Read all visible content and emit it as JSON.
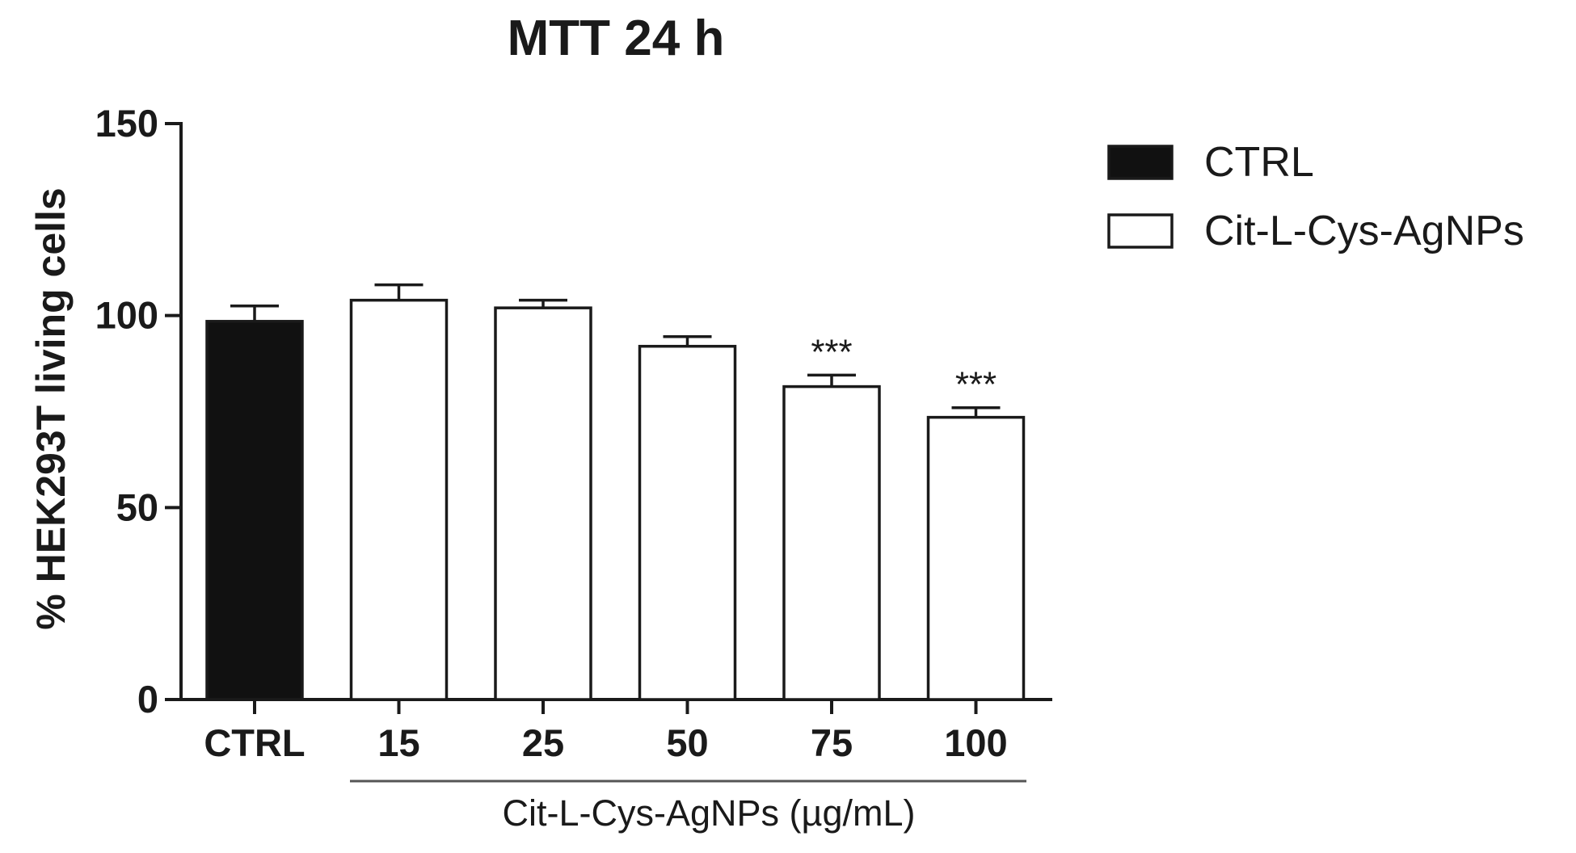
{
  "chart_data": {
    "type": "bar",
    "title": "MTT 24 h",
    "ylabel": "% HEK293T living cells",
    "xlabel": "",
    "ylim": [
      0,
      150
    ],
    "yticks": [
      0,
      50,
      100,
      150
    ],
    "categories": [
      "CTRL",
      "15",
      "25",
      "50",
      "75",
      "100"
    ],
    "values": [
      98.5,
      104,
      102,
      92,
      81.5,
      73.5
    ],
    "errors": [
      4,
      4,
      2,
      2.5,
      3,
      2.5
    ],
    "series_of_bar": [
      "CTRL",
      "Cit-L-Cys-AgNPs",
      "Cit-L-Cys-AgNPs",
      "Cit-L-Cys-AgNPs",
      "Cit-L-Cys-AgNPs",
      "Cit-L-Cys-AgNPs"
    ],
    "significance": [
      "",
      "",
      "",
      "",
      "***",
      "***"
    ],
    "group_label": "Cit-L-Cys-AgNPs (µg/mL)",
    "legend": [
      {
        "name": "CTRL",
        "fill": "#111111"
      },
      {
        "name": "Cit-L-Cys-AgNPs",
        "fill": "#ffffff"
      }
    ],
    "legend_position": "top-right",
    "grid": false
  },
  "colors": {
    "ink": "#1a1a1a",
    "ctrl_fill": "#111111",
    "treated_fill": "#ffffff"
  }
}
